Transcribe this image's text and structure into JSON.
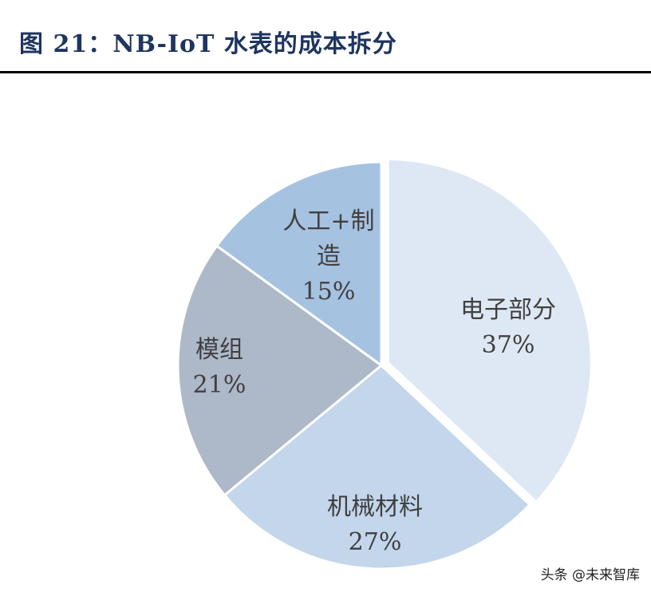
{
  "title": "图 21：NB-IoT 水表的成本拆分",
  "watermark": "头条 @未来智库",
  "chart_data": {
    "type": "pie",
    "title": "图 21：NB-IoT 水表的成本拆分",
    "categories": [
      "电子部分",
      "机械材料",
      "模组",
      "人工+制造"
    ],
    "values": [
      37,
      27,
      21,
      15
    ],
    "unit": "%",
    "colors": [
      "#DEE8F4",
      "#C3D6EB",
      "#ADB8C9",
      "#A6C2E1"
    ],
    "exploded": [
      "电子部分"
    ],
    "labels": [
      {
        "lines": [
          "电子部分",
          "37%"
        ]
      },
      {
        "lines": [
          "机械材料",
          "27%"
        ]
      },
      {
        "lines": [
          "模组",
          "21%"
        ]
      },
      {
        "lines": [
          "人工+制",
          "造",
          "15%"
        ]
      }
    ],
    "legend": "none",
    "start_angle": "12 o'clock, clockwise"
  }
}
